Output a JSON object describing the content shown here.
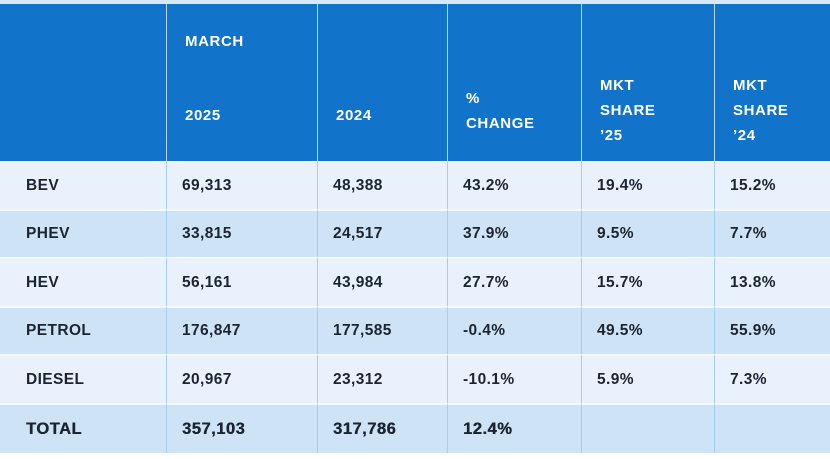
{
  "colors": {
    "header_bg": "#1173c9",
    "header_text": "#ffffff",
    "row_light": "#e9f2fc",
    "row_dark": "#cfe3f7",
    "body_text": "#1b2531",
    "top_strip": "#d9e8f8",
    "body_divider": "#a9cbec"
  },
  "table": {
    "header": {
      "month": "MARCH",
      "year_2025": "2025",
      "year_2024": "2024",
      "pct_line1": "%",
      "pct_line2": "CHANGE",
      "mkt": "MKT",
      "share": "SHARE",
      "y25": "’25",
      "y24": "’24"
    },
    "rows": [
      {
        "label": "BEV",
        "v2025": "69,313",
        "v2024": "48,388",
        "change": "43.2%",
        "share25": "19.4%",
        "share24": "15.2%"
      },
      {
        "label": "PHEV",
        "v2025": "33,815",
        "v2024": "24,517",
        "change": "37.9%",
        "share25": "9.5%",
        "share24": "7.7%"
      },
      {
        "label": "HEV",
        "v2025": "56,161",
        "v2024": "43,984",
        "change": "27.7%",
        "share25": "15.7%",
        "share24": "13.8%"
      },
      {
        "label": "PETROL",
        "v2025": "176,847",
        "v2024": "177,585",
        "change": "-0.4%",
        "share25": "49.5%",
        "share24": "55.9%"
      },
      {
        "label": "DIESEL",
        "v2025": "20,967",
        "v2024": "23,312",
        "change": "-10.1%",
        "share25": "5.9%",
        "share24": "7.3%"
      },
      {
        "label": "TOTAL",
        "v2025": "357,103",
        "v2024": "317,786",
        "change": "12.4%",
        "share25": "",
        "share24": ""
      }
    ]
  },
  "chart_data": {
    "type": "table",
    "columns": [
      "",
      "MARCH 2025",
      "2024",
      "% CHANGE",
      "MKT SHARE ’25",
      "MKT SHARE ’24"
    ],
    "rows": [
      [
        "BEV",
        "69,313",
        "48,388",
        "43.2%",
        "19.4%",
        "15.2%"
      ],
      [
        "PHEV",
        "33,815",
        "24,517",
        "37.9%",
        "9.5%",
        "7.7%"
      ],
      [
        "HEV",
        "56,161",
        "43,984",
        "27.7%",
        "15.7%",
        "13.8%"
      ],
      [
        "PETROL",
        "176,847",
        "177,585",
        "-0.4%",
        "49.5%",
        "55.9%"
      ],
      [
        "DIESEL",
        "20,967",
        "23,312",
        "-10.1%",
        "5.9%",
        "7.3%"
      ],
      [
        "TOTAL",
        "357,103",
        "317,786",
        "12.4%",
        "",
        ""
      ]
    ]
  }
}
